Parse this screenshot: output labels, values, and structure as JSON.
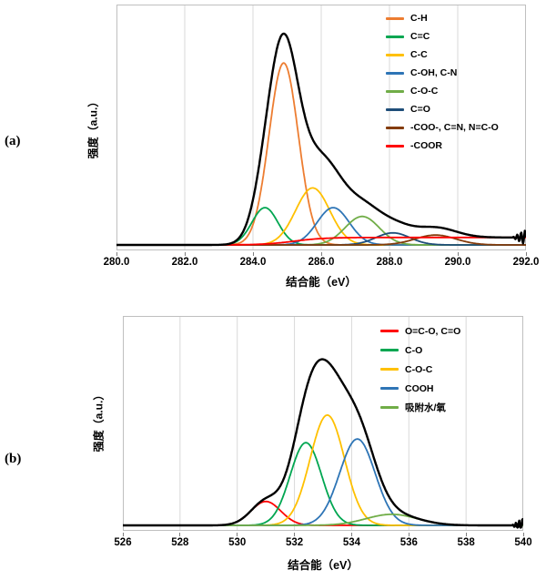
{
  "figure": {
    "background": "#ffffff"
  },
  "panels": [
    {
      "label": "(a)"
    },
    {
      "label": "(b)"
    }
  ],
  "chart_data": [
    {
      "type": "line",
      "subtype": "xps-fitted-spectrum",
      "title": "",
      "xlabel": "结合能（eV）",
      "ylabel": "强度（a.u.）",
      "x_range": [
        280.0,
        292.0
      ],
      "x_ticks": [
        280,
        282,
        284,
        286,
        288,
        290,
        292
      ],
      "x_tick_labels": [
        "280.0",
        "282.0",
        "284.0",
        "286.0",
        "288.0",
        "290.0",
        "292.0"
      ],
      "ylim": [
        0,
        1.08
      ],
      "grid": "vertical-only",
      "grid_color": "#D9D9D9",
      "border_color": "#BFBFBF",
      "legend_position": "top-right",
      "envelope": {
        "color": "#000000",
        "definition": "sum_of_components",
        "edge_noise_amp": 0.035
      },
      "series": [
        {
          "name": "C-H",
          "color": "#ED7D31",
          "shape": "gaussian",
          "center_eV": 284.9,
          "height_au": 0.83,
          "sigma_eV": 0.43
        },
        {
          "name": "C=C",
          "color": "#00A651",
          "shape": "gaussian",
          "center_eV": 284.35,
          "height_au": 0.17,
          "sigma_eV": 0.38
        },
        {
          "name": "C-C",
          "color": "#FFC000",
          "shape": "gaussian",
          "center_eV": 285.75,
          "height_au": 0.26,
          "sigma_eV": 0.5
        },
        {
          "name": "C-OH, C-N",
          "color": "#2E75B6",
          "shape": "gaussian",
          "center_eV": 286.35,
          "height_au": 0.17,
          "sigma_eV": 0.47
        },
        {
          "name": "C-O-C",
          "color": "#70AD47",
          "shape": "gaussian",
          "center_eV": 287.2,
          "height_au": 0.13,
          "sigma_eV": 0.5
        },
        {
          "name": "C=O",
          "color": "#1F4E79",
          "shape": "gaussian",
          "center_eV": 288.1,
          "height_au": 0.055,
          "sigma_eV": 0.5
        },
        {
          "name": "-COO-, C=N, N=C-O",
          "color": "#843C0C",
          "shape": "gaussian",
          "center_eV": 289.35,
          "height_au": 0.045,
          "sigma_eV": 0.6
        },
        {
          "name": "-COOR",
          "color": "#FF0000",
          "shape": "sigmoid",
          "center_eV": 285.2,
          "height_au": 0.034,
          "width_eV": 0.45
        }
      ]
    },
    {
      "type": "line",
      "subtype": "xps-fitted-spectrum",
      "title": "",
      "xlabel": "结合能（eV）",
      "ylabel": "强度（a.u.）",
      "x_range": [
        526,
        540
      ],
      "x_ticks": [
        526,
        528,
        530,
        532,
        534,
        536,
        538,
        540
      ],
      "x_tick_labels": [
        "526",
        "528",
        "530",
        "532",
        "534",
        "536",
        "538",
        "540"
      ],
      "ylim": [
        0,
        1.12
      ],
      "grid": "vertical-only",
      "grid_color": "#D9D9D9",
      "border_color": "#BFBFBF",
      "legend_position": "top-right",
      "envelope": {
        "color": "#000000",
        "definition": "sum_of_components",
        "edge_noise_amp": 0.04
      },
      "series": [
        {
          "name": "O=C-O, C=O",
          "color": "#FF0000",
          "shape": "gaussian",
          "center_eV": 531.0,
          "height_au": 0.13,
          "sigma_eV": 0.52
        },
        {
          "name": "C-O",
          "color": "#00A651",
          "shape": "gaussian",
          "center_eV": 532.4,
          "height_au": 0.45,
          "sigma_eV": 0.55
        },
        {
          "name": "C-O-C",
          "color": "#FFC000",
          "shape": "gaussian",
          "center_eV": 533.15,
          "height_au": 0.6,
          "sigma_eV": 0.6
        },
        {
          "name": "COOH",
          "color": "#2E75B6",
          "shape": "gaussian",
          "center_eV": 534.2,
          "height_au": 0.47,
          "sigma_eV": 0.62
        },
        {
          "name": "吸附水/氧",
          "color": "#70AD47",
          "shape": "gaussian",
          "center_eV": 535.4,
          "height_au": 0.06,
          "sigma_eV": 0.9
        }
      ]
    }
  ]
}
